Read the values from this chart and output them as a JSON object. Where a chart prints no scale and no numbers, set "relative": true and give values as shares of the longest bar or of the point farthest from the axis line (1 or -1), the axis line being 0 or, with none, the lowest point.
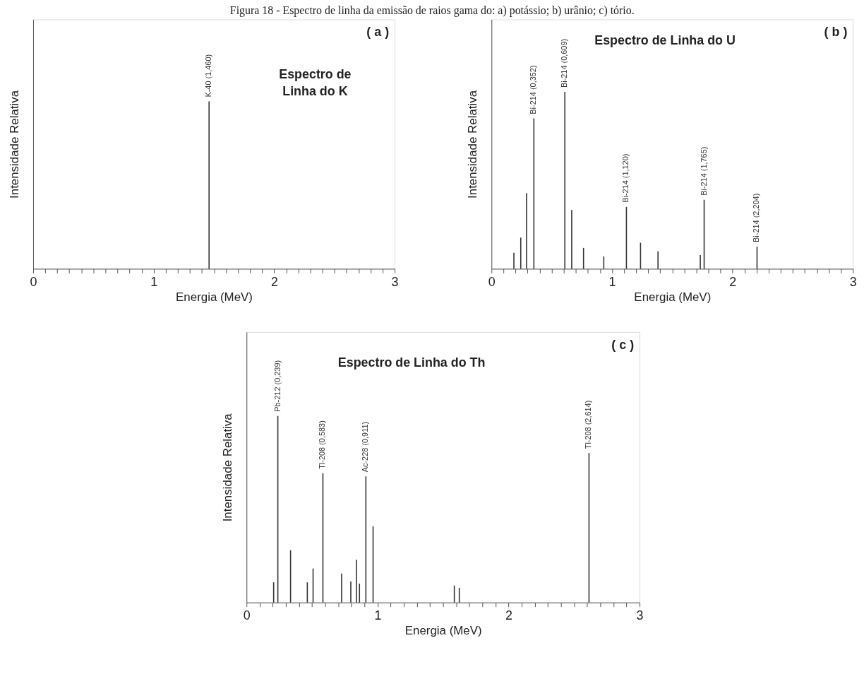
{
  "chart_data": [
    {
      "type": "bar",
      "title": "Espectro de Linha do K",
      "xlabel": "Energia (MeV)",
      "ylabel": "Intensidade Relativa",
      "relative": true,
      "color": "#333333",
      "annotations": [
        "Figura 18 - Espectro de linha da emissão de raios gama do: a) potássio; b) urânio; c) tório.",
        "( a )",
        {
          "text": "K-40 (1,460)",
          "x": 1.46,
          "y": 1
        }
      ],
      "x": [
        1.46
      ],
      "values": [
        1
      ],
      "xlim": [
        0,
        3
      ],
      "xticks": [
        0,
        {
          "value": 0.1,
          "label": null
        },
        {
          "value": 0.2,
          "label": null
        },
        {
          "value": 0.3,
          "label": null
        },
        {
          "value": 0.4,
          "label": null
        },
        {
          "value": 0.5,
          "label": null
        },
        {
          "value": 0.6,
          "label": null
        },
        {
          "value": 0.7,
          "label": null
        },
        {
          "value": 0.8,
          "label": null
        },
        {
          "value": 0.9,
          "label": null
        },
        1,
        {
          "value": 1.1,
          "label": null
        },
        {
          "value": 1.2,
          "label": null
        },
        {
          "value": 1.3,
          "label": null
        },
        {
          "value": 1.4,
          "label": null
        },
        {
          "value": 1.5,
          "label": null
        },
        {
          "value": 1.6,
          "label": null
        },
        {
          "value": 1.7,
          "label": null
        },
        {
          "value": 1.8,
          "label": null
        },
        {
          "value": 1.9,
          "label": null
        },
        2,
        {
          "value": 2.1,
          "label": null
        },
        {
          "value": 2.2,
          "label": null
        },
        {
          "value": 2.3,
          "label": null
        },
        {
          "value": 2.4,
          "label": null
        },
        {
          "value": 2.5,
          "label": null
        },
        {
          "value": 2.6,
          "label": null
        },
        {
          "value": 2.7,
          "label": null
        },
        {
          "value": 2.8,
          "label": null
        },
        {
          "value": 2.9,
          "label": null
        },
        3
      ],
      "grid": false
    },
    {
      "type": "bar",
      "title": "Espectro de Linha do U",
      "xlabel": "Energia (MeV)",
      "ylabel": "Intensidade Relativa",
      "relative": true,
      "color": "#333333",
      "annotations": [
        "( b )",
        {
          "text": "Bi-214 (0,352)",
          "x": 0.352,
          "y": 0.85
        },
        {
          "text": "Bi-214 (0,609)",
          "x": 0.609,
          "y": 1
        },
        {
          "text": "Bi-214 (1,120)",
          "x": 1.12,
          "y": 0.35
        },
        {
          "text": "Bi-214 (1,765)",
          "x": 1.765,
          "y": 0.39
        },
        {
          "text": "Bi-214 (2,204)",
          "x": 2.204,
          "y": 0.126
        }
      ],
      "x": [
        0.186,
        0.243,
        0.291,
        0.352,
        0.609,
        0.666,
        0.764,
        0.932,
        1.12,
        1.237,
        1.382,
        1.733,
        1.765,
        2.204
      ],
      "values": [
        0.091,
        0.176,
        0.428,
        0.85,
        1,
        0.332,
        0.118,
        0.07,
        0.35,
        0.147,
        0.099,
        0.078,
        0.39,
        0.126
      ],
      "xlim": [
        0,
        3
      ],
      "xticks": [
        0,
        {
          "value": 0.1,
          "label": null
        },
        {
          "value": 0.2,
          "label": null
        },
        {
          "value": 0.3,
          "label": null
        },
        {
          "value": 0.4,
          "label": null
        },
        {
          "value": 0.5,
          "label": null
        },
        {
          "value": 0.6,
          "label": null
        },
        {
          "value": 0.7,
          "label": null
        },
        {
          "value": 0.8,
          "label": null
        },
        {
          "value": 0.9,
          "label": null
        },
        1,
        {
          "value": 1.1,
          "label": null
        },
        {
          "value": 1.2,
          "label": null
        },
        {
          "value": 1.3,
          "label": null
        },
        {
          "value": 1.4,
          "label": null
        },
        {
          "value": 1.5,
          "label": null
        },
        {
          "value": 1.6,
          "label": null
        },
        {
          "value": 1.7,
          "label": null
        },
        {
          "value": 1.8,
          "label": null
        },
        {
          "value": 1.9,
          "label": null
        },
        2,
        {
          "value": 2.1,
          "label": null
        },
        {
          "value": 2.2,
          "label": null
        },
        {
          "value": 2.3,
          "label": null
        },
        {
          "value": 2.4,
          "label": null
        },
        {
          "value": 2.5,
          "label": null
        },
        {
          "value": 2.6,
          "label": null
        },
        {
          "value": 2.7,
          "label": null
        },
        {
          "value": 2.8,
          "label": null
        },
        {
          "value": 2.9,
          "label": null
        },
        3
      ],
      "grid": false
    },
    {
      "type": "bar",
      "title": "Espectro de Linha do Th",
      "xlabel": "Energia (MeV)",
      "ylabel": "Intensidade Relativa",
      "relative": true,
      "color": "#333333",
      "annotations": [
        "( c )",
        {
          "text": "Pb-212 (0,239)",
          "x": 0.239,
          "y": 1
        },
        {
          "text": "Tl-208 (0,583)",
          "x": 0.583,
          "y": 0.693
        },
        {
          "text": "Ac-228 (0,911)",
          "x": 0.911,
          "y": 0.676
        },
        {
          "text": "Tl-208 (2,614)",
          "x": 2.614,
          "y": 0.801
        }
      ],
      "x": [
        0.207,
        0.239,
        0.336,
        0.464,
        0.508,
        0.583,
        0.726,
        0.796,
        0.839,
        0.862,
        0.911,
        0.966,
        1.586,
        1.624,
        2.614
      ],
      "values": [
        0.108,
        1,
        0.28,
        0.108,
        0.182,
        0.693,
        0.155,
        0.113,
        0.229,
        0.101,
        0.676,
        0.408,
        0.091,
        0.079,
        0.801
      ],
      "xlim": [
        0,
        3
      ],
      "xticks": [
        0,
        {
          "value": 0.1,
          "label": null
        },
        {
          "value": 0.2,
          "label": null
        },
        {
          "value": 0.3,
          "label": null
        },
        {
          "value": 0.4,
          "label": null
        },
        {
          "value": 0.5,
          "label": null
        },
        {
          "value": 0.6,
          "label": null
        },
        {
          "value": 0.7,
          "label": null
        },
        {
          "value": 0.8,
          "label": null
        },
        {
          "value": 0.9,
          "label": null
        },
        1,
        {
          "value": 1.1,
          "label": null
        },
        {
          "value": 1.2,
          "label": null
        },
        {
          "value": 1.3,
          "label": null
        },
        {
          "value": 1.4,
          "label": null
        },
        {
          "value": 1.5,
          "label": null
        },
        {
          "value": 1.6,
          "label": null
        },
        {
          "value": 1.7,
          "label": null
        },
        {
          "value": 1.8,
          "label": null
        },
        {
          "value": 1.9,
          "label": null
        },
        2,
        {
          "value": 2.1,
          "label": null
        },
        {
          "value": 2.2,
          "label": null
        },
        {
          "value": 2.3,
          "label": null
        },
        {
          "value": 2.4,
          "label": null
        },
        {
          "value": 2.5,
          "label": null
        },
        {
          "value": 2.6,
          "label": null
        },
        {
          "value": 2.7,
          "label": null
        },
        {
          "value": 2.8,
          "label": null
        },
        {
          "value": 2.9,
          "label": null
        },
        3
      ],
      "grid": false
    }
  ]
}
